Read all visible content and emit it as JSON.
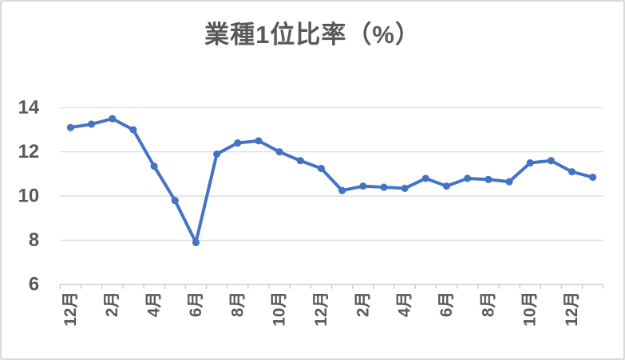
{
  "window": {
    "background": "#FFFFFF",
    "border_color": "#D9D9D9"
  },
  "chart_data": {
    "type": "line",
    "title": "業種1位比率（%）",
    "categories": [
      "12月",
      "1月",
      "2月",
      "3月",
      "4月",
      "5月",
      "6月",
      "7月",
      "8月",
      "9月",
      "10月",
      "11月",
      "12月",
      "1月",
      "2月",
      "3月",
      "4月",
      "5月",
      "6月",
      "7月",
      "8月",
      "9月",
      "10月",
      "11月",
      "12月",
      "1月"
    ],
    "values": [
      13.1,
      13.25,
      13.5,
      13.0,
      11.35,
      9.8,
      7.9,
      11.9,
      12.4,
      12.5,
      12.0,
      11.6,
      11.25,
      10.25,
      10.45,
      10.4,
      10.35,
      10.8,
      10.45,
      10.8,
      10.75,
      10.65,
      11.5,
      11.6,
      11.1,
      10.85
    ],
    "ylim": [
      6,
      14
    ],
    "yticks": [
      14,
      12,
      10,
      8,
      6
    ],
    "x_labels_visible": [
      "12月",
      "2月",
      "4月",
      "6月",
      "8月",
      "10月",
      "12月",
      "2月",
      "4月",
      "6月",
      "8月",
      "10月",
      "12月"
    ],
    "x_label_every_n": 2,
    "x_label_rotation_deg": -90,
    "grid": "horizontal",
    "legend_position": "none",
    "marker": "circle",
    "line_color": "#4472C4",
    "grid_color": "#D9D9D9",
    "axis_color": "#C6C6C6",
    "label_color": "#595959",
    "title_color": "#595959"
  }
}
